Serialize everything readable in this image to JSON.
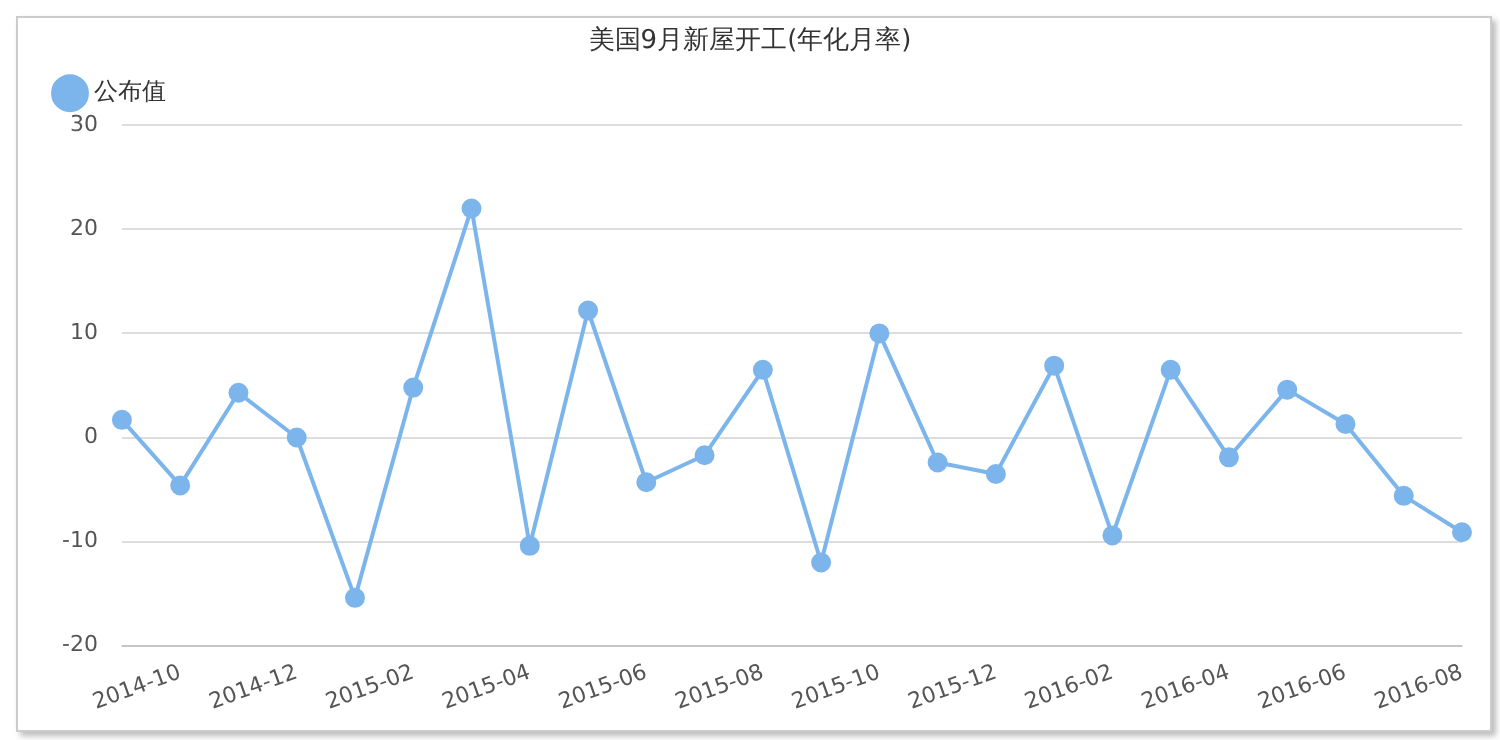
{
  "chart_data": {
    "type": "line",
    "title": "美国9月新屋开工(年化月率)",
    "categories": [
      null,
      "2014-10",
      null,
      "2014-12",
      null,
      "2015-02",
      null,
      "2015-04",
      null,
      "2015-06",
      null,
      "2015-08",
      null,
      "2015-10",
      null,
      "2015-12",
      null,
      "2016-02",
      null,
      "2016-04",
      null,
      "2016-06",
      null,
      "2016-08"
    ],
    "series": [
      {
        "name": "公布值",
        "color": "#7cb5ec",
        "values": [
          1.7,
          -4.6,
          4.3,
          0,
          -15.4,
          4.8,
          22.0,
          -10.4,
          12.2,
          -4.3,
          -1.7,
          6.5,
          -12.0,
          10.0,
          -2.4,
          -3.5,
          6.9,
          -9.4,
          6.5,
          -1.9,
          4.6,
          1.3,
          -5.6,
          -9.1
        ]
      }
    ],
    "ylim": [
      -20,
      30
    ],
    "yticks": [
      -20,
      -10,
      0,
      10,
      20,
      30
    ],
    "grid": "y",
    "legend": "top left",
    "marker": "circle"
  }
}
